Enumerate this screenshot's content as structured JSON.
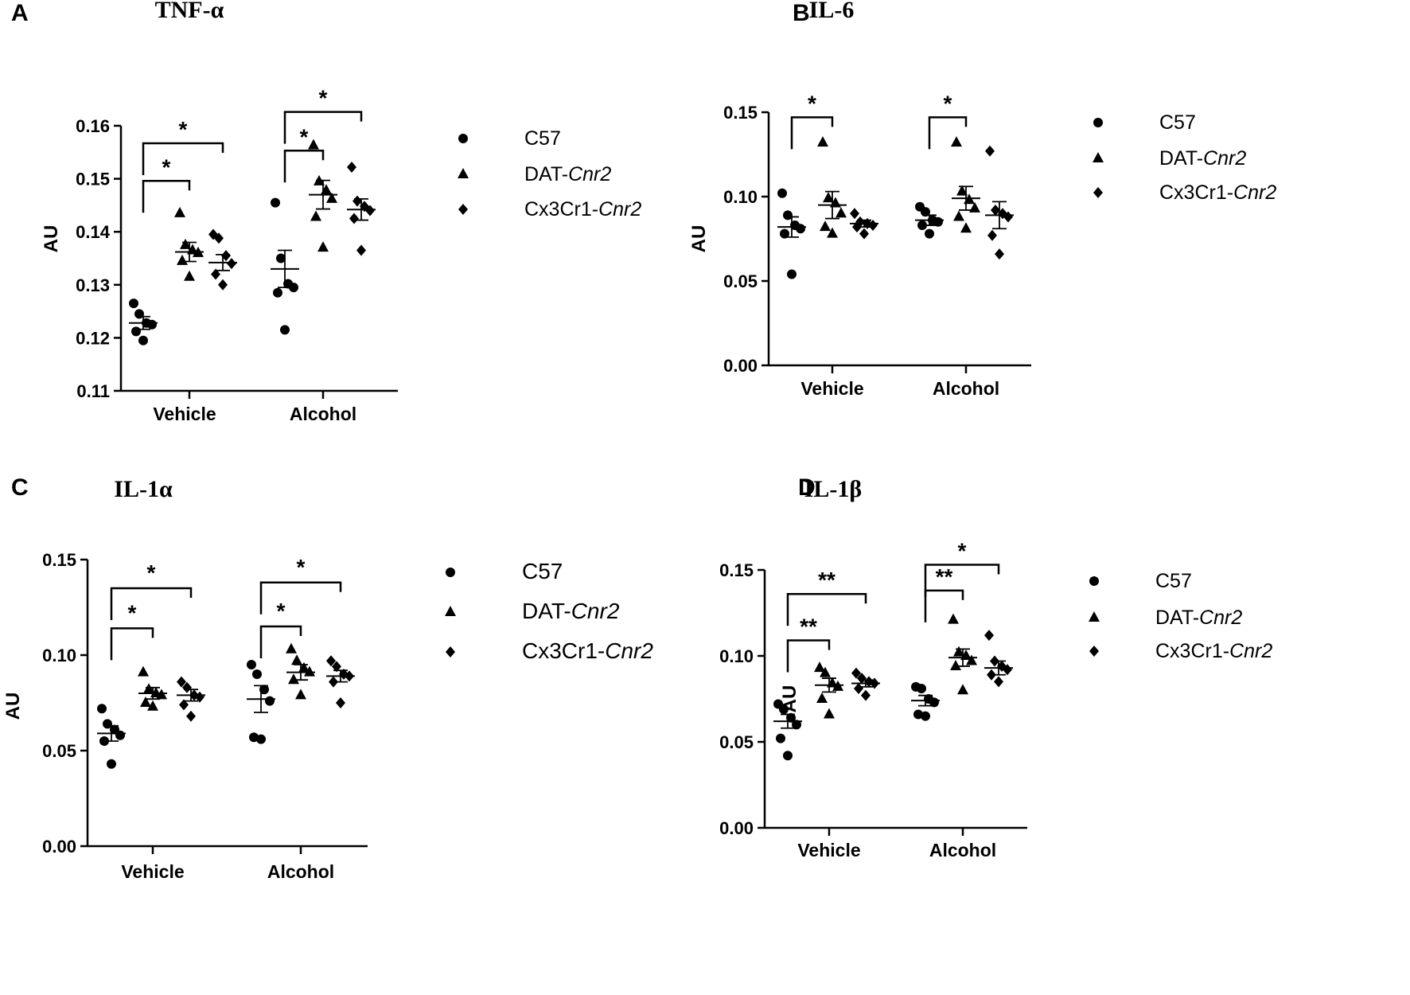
{
  "chart_data": [
    {
      "panel": "A",
      "title": "TNF-α",
      "type": "scatter",
      "ylabel": "AU",
      "ylim": [
        0.11,
        0.16
      ],
      "yticks": [
        "0.11",
        "0.12",
        "0.13",
        "0.14",
        "0.15",
        "0.16"
      ],
      "categories": [
        "Vehicle",
        "Alcohol"
      ],
      "legend": [
        "C57",
        "DAT-",
        "Cx3Cr1-"
      ],
      "legend_italic": "Cnr2",
      "series": [
        {
          "name": "C57",
          "marker": "circle",
          "points": [
            [
              0.1265,
              0.1245,
              0.1228,
              0.1225,
              0.1212,
              0.1195
            ],
            [
              0.1455,
              0.135,
              0.1302,
              0.1295,
              0.1285,
              0.1215
            ]
          ],
          "mean": [
            0.1228,
            0.133
          ],
          "sem": [
            0.0012,
            0.0035
          ]
        },
        {
          "name": "DAT-Cnr2",
          "marker": "triangle",
          "points": [
            [
              0.1435,
              0.1375,
              0.1365,
              0.136,
              0.1345,
              0.1315
            ],
            [
              0.1563,
              0.1495,
              0.1478,
              0.1462,
              0.1428,
              0.137
            ]
          ],
          "mean": [
            0.1362,
            0.147
          ],
          "sem": [
            0.0018,
            0.0027
          ]
        },
        {
          "name": "Cx3Cr1-Cnr2",
          "marker": "diamond",
          "points": [
            [
              0.1395,
              0.1388,
              0.1355,
              0.134,
              0.132,
              0.13
            ],
            [
              0.1522,
              0.1458,
              0.1448,
              0.144,
              0.1425,
              0.1365
            ]
          ],
          "mean": [
            0.1342,
            0.1442
          ],
          "sem": [
            0.0015,
            0.002
          ]
        }
      ],
      "brackets": [
        {
          "group": 0,
          "from": 0,
          "to": 1,
          "y": 0.1496,
          "label": "*"
        },
        {
          "group": 0,
          "from": 0,
          "to": 2,
          "y": 0.1567,
          "label": "*"
        },
        {
          "group": 1,
          "from": 0,
          "to": 1,
          "y": 0.1553,
          "label": "*"
        },
        {
          "group": 1,
          "from": 0,
          "to": 2,
          "y": 0.1626,
          "label": "*"
        }
      ]
    },
    {
      "panel": "B",
      "title": "IL-6",
      "type": "scatter",
      "ylabel": "AU",
      "ylim": [
        0.0,
        0.15
      ],
      "yticks": [
        "0.00",
        "0.05",
        "0.10",
        "0.15"
      ],
      "categories": [
        "Vehicle",
        "Alcohol"
      ],
      "legend": [
        "C57",
        "DAT-",
        "Cx3Cr1-"
      ],
      "legend_italic": "Cnr2",
      "series": [
        {
          "name": "C57",
          "marker": "circle",
          "points": [
            [
              0.102,
              0.089,
              0.083,
              0.081,
              0.078,
              0.054
            ],
            [
              0.094,
              0.091,
              0.086,
              0.085,
              0.083,
              0.078
            ]
          ],
          "mean": [
            0.082,
            0.086
          ],
          "sem": [
            0.006,
            0.003
          ]
        },
        {
          "name": "DAT-Cnr2",
          "marker": "triangle",
          "points": [
            [
              0.132,
              0.099,
              0.096,
              0.09,
              0.082,
              0.078
            ],
            [
              0.132,
              0.103,
              0.098,
              0.093,
              0.088,
              0.081
            ]
          ],
          "mean": [
            0.095,
            0.099
          ],
          "sem": [
            0.008,
            0.007
          ]
        },
        {
          "name": "Cx3Cr1-Cnr2",
          "marker": "diamond",
          "points": [
            [
              0.09,
              0.085,
              0.084,
              0.083,
              0.082,
              0.078
            ],
            [
              0.127,
              0.092,
              0.09,
              0.088,
              0.077,
              0.066
            ]
          ],
          "mean": [
            0.084,
            0.089
          ],
          "sem": [
            0.002,
            0.008
          ]
        }
      ],
      "brackets": [
        {
          "group": 0,
          "from": 0,
          "to": 1,
          "y": 0.147,
          "label": "*"
        },
        {
          "group": 1,
          "from": 0,
          "to": 1,
          "y": 0.147,
          "label": "*"
        }
      ]
    },
    {
      "panel": "C",
      "title": "IL-1α",
      "type": "scatter",
      "ylabel": "AU",
      "ylim": [
        0.0,
        0.15
      ],
      "yticks": [
        "0.00",
        "0.05",
        "0.10",
        "0.15"
      ],
      "categories": [
        "Vehicle",
        "Alcohol"
      ],
      "legend": [
        "C57",
        "DAT-",
        "Cx3Cr1-"
      ],
      "legend_italic": "Cnr2",
      "series": [
        {
          "name": "C57",
          "marker": "circle",
          "points": [
            [
              0.072,
              0.064,
              0.061,
              0.058,
              0.055,
              0.043
            ],
            [
              0.095,
              0.09,
              0.082,
              0.076,
              0.057,
              0.056
            ]
          ],
          "mean": [
            0.059,
            0.077
          ],
          "sem": [
            0.004,
            0.007
          ]
        },
        {
          "name": "DAT-Cnr2",
          "marker": "triangle",
          "points": [
            [
              0.091,
              0.082,
              0.08,
              0.079,
              0.075,
              0.073
            ],
            [
              0.103,
              0.097,
              0.093,
              0.091,
              0.087,
              0.079
            ]
          ],
          "mean": [
            0.08,
            0.091
          ],
          "sem": [
            0.003,
            0.004
          ]
        },
        {
          "name": "Cx3Cr1-Cnr2",
          "marker": "diamond",
          "points": [
            [
              0.086,
              0.083,
              0.079,
              0.078,
              0.074,
              0.068
            ],
            [
              0.097,
              0.094,
              0.09,
              0.089,
              0.086,
              0.075
            ]
          ],
          "mean": [
            0.079,
            0.089
          ],
          "sem": [
            0.003,
            0.003
          ]
        }
      ],
      "brackets": [
        {
          "group": 0,
          "from": 0,
          "to": 1,
          "y": 0.114,
          "label": "*"
        },
        {
          "group": 0,
          "from": 0,
          "to": 2,
          "y": 0.135,
          "label": "*"
        },
        {
          "group": 1,
          "from": 0,
          "to": 1,
          "y": 0.115,
          "label": "*"
        },
        {
          "group": 1,
          "from": 0,
          "to": 2,
          "y": 0.138,
          "label": "*"
        }
      ]
    },
    {
      "panel": "D",
      "title": "IL-1β",
      "type": "scatter",
      "ylabel": "AU",
      "ylim": [
        0.0,
        0.15
      ],
      "yticks": [
        "0.00",
        "0.05",
        "0.10",
        "0.15"
      ],
      "categories": [
        "Vehicle",
        "Alcohol"
      ],
      "legend": [
        "C57",
        "DAT-",
        "Cx3Cr1-"
      ],
      "legend_italic": "Cnr2",
      "series": [
        {
          "name": "C57",
          "marker": "circle",
          "points": [
            [
              0.072,
              0.069,
              0.064,
              0.06,
              0.052,
              0.042
            ],
            [
              0.082,
              0.081,
              0.075,
              0.073,
              0.066,
              0.065
            ]
          ],
          "mean": [
            0.062,
            0.074
          ],
          "sem": [
            0.004,
            0.003
          ]
        },
        {
          "name": "DAT-Cnr2",
          "marker": "triangle",
          "points": [
            [
              0.093,
              0.09,
              0.084,
              0.082,
              0.075,
              0.066
            ],
            [
              0.121,
              0.102,
              0.1,
              0.097,
              0.094,
              0.08
            ]
          ],
          "mean": [
            0.083,
            0.099
          ],
          "sem": [
            0.004,
            0.005
          ]
        },
        {
          "name": "Cx3Cr1-Cnr2",
          "marker": "diamond",
          "points": [
            [
              0.09,
              0.087,
              0.085,
              0.084,
              0.081,
              0.077
            ],
            [
              0.112,
              0.097,
              0.094,
              0.092,
              0.089,
              0.085
            ]
          ],
          "mean": [
            0.084,
            0.093
          ],
          "sem": [
            0.002,
            0.004
          ]
        }
      ],
      "brackets": [
        {
          "group": 0,
          "from": 0,
          "to": 1,
          "y": 0.109,
          "label": "**"
        },
        {
          "group": 0,
          "from": 0,
          "to": 2,
          "y": 0.136,
          "label": "**"
        },
        {
          "group": 1,
          "from": 0,
          "to": 1,
          "y": 0.138,
          "label": "**"
        },
        {
          "group": 1,
          "from": 0,
          "to": 2,
          "y": 0.153,
          "label": "*"
        }
      ]
    }
  ]
}
